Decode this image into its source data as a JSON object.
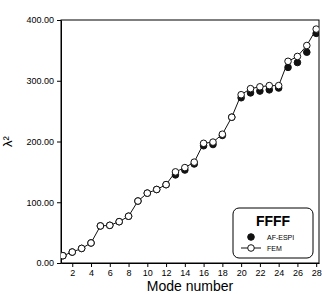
{
  "chart_data": {
    "type": "line",
    "title": "FFFF",
    "x_label": "Mode number",
    "y_label": "λ²",
    "x": [
      1,
      2,
      3,
      4,
      5,
      6,
      7,
      8,
      9,
      10,
      11,
      12,
      13,
      14,
      15,
      16,
      17,
      18,
      19,
      20,
      21,
      22,
      23,
      24,
      25,
      26,
      27,
      28
    ],
    "series": [
      {
        "name": "AF-ESPI",
        "color": "#111111",
        "marker": "circle-filled",
        "line_style": "none",
        "values": [
          12,
          18,
          24,
          33,
          61,
          62,
          68,
          77,
          102,
          115,
          121,
          129,
          145,
          153,
          163,
          193,
          195,
          210,
          240,
          272,
          280,
          283,
          285,
          288,
          322,
          330,
          347,
          378
        ]
      },
      {
        "name": "FEM",
        "color": "#111111",
        "marker": "circle-open",
        "line_style": "solid",
        "values": [
          12,
          18,
          24,
          33,
          61,
          62,
          68,
          77,
          102,
          115,
          121,
          129,
          150,
          157,
          166,
          197,
          199,
          212,
          240,
          277,
          287,
          290,
          292,
          292,
          332,
          340,
          358,
          385
        ]
      }
    ],
    "xlim": [
      0.8,
      28.3
    ],
    "xticks": [
      2,
      4,
      6,
      8,
      10,
      12,
      14,
      16,
      18,
      20,
      22,
      24,
      26,
      28
    ],
    "ylim": [
      0,
      400
    ],
    "yticks": [
      {
        "value": 0,
        "label": "0.00"
      },
      {
        "value": 100,
        "label": "100.00"
      },
      {
        "value": 200,
        "label": "200.00"
      },
      {
        "value": 300,
        "label": "300.00"
      },
      {
        "value": 400,
        "label": "400.00"
      }
    ],
    "grid": false,
    "legend": "lower right"
  }
}
